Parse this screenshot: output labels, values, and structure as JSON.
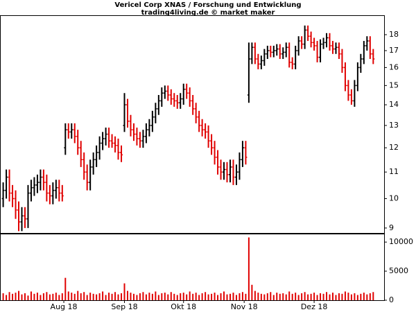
{
  "chart_data": {
    "type": "ohlc",
    "title": "Vericel Corp XNAS / Forschung und Entwicklung",
    "subtitle": "trading4living.de © market maker",
    "log_y": true,
    "up_color": "#000000",
    "down_color": "#e00000",
    "volume_color": "#e00000",
    "xlim": [
      -0.8,
      122.5
    ],
    "xticks": [
      {
        "value": 19.5,
        "label": "Aug 18"
      },
      {
        "value": 39,
        "label": "Sep 18"
      },
      {
        "value": 58,
        "label": "Okt 18"
      },
      {
        "value": 77.5,
        "label": "Nov 18"
      },
      {
        "value": 100,
        "label": "Dez 18"
      }
    ],
    "ylim": [
      8.82,
      19.25
    ],
    "yticks": [
      9,
      10,
      11,
      12,
      13,
      14,
      15,
      16,
      17,
      18
    ],
    "volume_ylim": [
      0,
      11450
    ],
    "volume_yticks": [
      0,
      5000,
      10000
    ],
    "open": [
      10.0,
      10.3,
      10.8,
      10.2,
      10.0,
      9.6,
      9.2,
      9.4,
      9.3,
      10.2,
      10.4,
      10.5,
      10.6,
      10.8,
      10.6,
      10.2,
      10.1,
      10.3,
      10.4,
      10.2,
      12.0,
      12.8,
      12.7,
      12.8,
      12.5,
      12.0,
      11.5,
      11.0,
      10.6,
      11.2,
      11.5,
      11.8,
      12.2,
      12.4,
      12.6,
      12.3,
      12.2,
      12.1,
      11.8,
      13.0,
      14.0,
      13.2,
      12.8,
      12.6,
      12.4,
      12.3,
      12.5,
      12.8,
      13.0,
      13.4,
      13.8,
      14.2,
      14.6,
      14.7,
      14.5,
      14.3,
      14.2,
      14.1,
      14.3,
      14.8,
      14.6,
      14.2,
      13.8,
      13.4,
      13.0,
      12.8,
      12.7,
      12.3,
      12.0,
      11.6,
      11.2,
      11.0,
      11.1,
      10.9,
      11.2,
      10.8,
      11.0,
      11.5,
      12.0,
      14.5,
      16.5,
      17.2,
      16.5,
      16.2,
      16.4,
      16.8,
      17.0,
      16.9,
      17.0,
      17.1,
      16.8,
      16.9,
      17.2,
      16.3,
      16.2,
      17.0,
      17.6,
      17.4,
      18.3,
      17.9,
      17.5,
      17.3,
      16.6,
      17.4,
      17.5,
      17.8,
      17.3,
      17.1,
      17.2,
      16.8,
      16.0,
      15.0,
      14.5,
      14.2,
      15.0,
      16.0,
      16.5,
      17.3,
      17.6,
      16.8
    ],
    "high": [
      10.6,
      11.1,
      11.1,
      10.5,
      10.3,
      9.9,
      9.7,
      9.7,
      10.5,
      10.7,
      10.8,
      10.9,
      11.1,
      11.1,
      10.9,
      10.5,
      10.6,
      10.7,
      10.7,
      10.5,
      13.1,
      13.1,
      13.1,
      13.1,
      12.8,
      12.3,
      11.8,
      11.3,
      11.5,
      11.8,
      12.1,
      12.5,
      12.7,
      12.9,
      12.9,
      12.6,
      12.5,
      12.4,
      12.1,
      14.6,
      14.3,
      13.5,
      13.1,
      12.9,
      12.7,
      12.8,
      13.1,
      13.3,
      13.7,
      14.1,
      14.5,
      14.9,
      15.0,
      15.0,
      14.8,
      14.6,
      14.5,
      14.6,
      15.1,
      15.1,
      14.9,
      14.5,
      14.1,
      13.7,
      13.3,
      13.1,
      13.0,
      12.6,
      12.3,
      11.9,
      11.5,
      11.4,
      11.4,
      11.5,
      11.5,
      11.3,
      11.8,
      12.3,
      12.3,
      17.5,
      17.5,
      17.5,
      16.8,
      16.7,
      17.1,
      17.3,
      17.3,
      17.3,
      17.4,
      17.4,
      17.2,
      17.5,
      17.5,
      16.6,
      17.3,
      17.9,
      17.9,
      18.6,
      18.6,
      18.2,
      17.8,
      17.6,
      17.7,
      17.8,
      18.1,
      18.1,
      17.6,
      17.5,
      17.5,
      17.1,
      16.3,
      15.3,
      14.8,
      15.3,
      16.3,
      16.8,
      17.6,
      17.9,
      17.9,
      17.1
    ],
    "low": [
      9.7,
      10.0,
      9.9,
      9.7,
      9.3,
      8.9,
      8.9,
      9.0,
      9.0,
      9.9,
      10.1,
      10.2,
      10.3,
      10.3,
      9.9,
      9.8,
      9.8,
      10.0,
      9.9,
      9.9,
      11.7,
      12.4,
      12.4,
      12.2,
      11.7,
      11.2,
      10.7,
      10.3,
      10.3,
      10.9,
      11.2,
      11.5,
      11.9,
      12.1,
      12.0,
      12.0,
      11.8,
      11.5,
      11.4,
      12.7,
      12.9,
      12.5,
      12.3,
      12.1,
      12.0,
      12.0,
      12.2,
      12.5,
      12.7,
      13.1,
      13.5,
      13.9,
      14.3,
      14.2,
      14.0,
      13.9,
      13.8,
      13.8,
      14.0,
      14.3,
      13.9,
      13.5,
      13.1,
      12.7,
      12.5,
      12.4,
      12.0,
      11.7,
      11.3,
      10.9,
      10.7,
      10.7,
      10.6,
      10.6,
      10.5,
      10.5,
      10.7,
      11.2,
      11.3,
      14.1,
      16.2,
      16.2,
      15.9,
      15.9,
      16.1,
      16.5,
      16.6,
      16.6,
      16.7,
      16.5,
      16.5,
      16.6,
      16.0,
      15.9,
      15.9,
      16.7,
      17.1,
      17.1,
      17.6,
      17.2,
      17.0,
      16.3,
      16.3,
      17.1,
      17.2,
      17.0,
      16.8,
      16.8,
      16.5,
      15.7,
      14.7,
      14.2,
      14.0,
      13.9,
      14.7,
      15.7,
      16.2,
      17.0,
      16.5,
      16.2
    ],
    "close": [
      10.3,
      10.8,
      10.2,
      10.0,
      9.6,
      9.2,
      9.4,
      9.3,
      10.2,
      10.4,
      10.5,
      10.6,
      10.8,
      10.6,
      10.2,
      10.1,
      10.3,
      10.4,
      10.2,
      10.1,
      12.8,
      12.7,
      12.8,
      12.5,
      12.0,
      11.5,
      11.0,
      10.6,
      11.2,
      11.5,
      11.8,
      12.2,
      12.4,
      12.6,
      12.3,
      12.2,
      12.1,
      11.8,
      11.7,
      14.0,
      13.2,
      12.8,
      12.6,
      12.4,
      12.3,
      12.5,
      12.8,
      13.0,
      13.4,
      13.8,
      14.2,
      14.6,
      14.7,
      14.5,
      14.3,
      14.2,
      14.1,
      14.3,
      14.8,
      14.6,
      14.2,
      13.8,
      13.4,
      13.0,
      12.8,
      12.7,
      12.3,
      12.0,
      11.6,
      11.2,
      11.0,
      11.1,
      10.9,
      11.2,
      10.8,
      11.0,
      11.5,
      12.0,
      11.6,
      16.5,
      17.2,
      16.5,
      16.2,
      16.4,
      16.8,
      17.0,
      16.9,
      17.0,
      17.1,
      16.8,
      16.9,
      17.2,
      16.3,
      16.2,
      17.0,
      17.6,
      17.4,
      18.3,
      17.9,
      17.5,
      17.3,
      16.6,
      17.4,
      17.5,
      17.8,
      17.3,
      17.1,
      17.2,
      16.8,
      16.0,
      15.0,
      14.5,
      14.2,
      15.0,
      16.0,
      16.5,
      17.3,
      17.6,
      16.8,
      16.5
    ],
    "volume": [
      1200,
      900,
      1400,
      1100,
      1300,
      1600,
      1000,
      1200,
      800,
      1500,
      1100,
      1300,
      900,
      1200,
      1400,
      1000,
      1100,
      1300,
      900,
      1200,
      3850,
      1500,
      1300,
      1100,
      1600,
      1200,
      1400,
      900,
      1300,
      1100,
      1000,
      1200,
      1500,
      900,
      1300,
      1100,
      1400,
      1000,
      1200,
      2900,
      1600,
      1300,
      1100,
      900,
      1200,
      1400,
      1000,
      1300,
      1100,
      1500,
      900,
      1200,
      1300,
      1000,
      1400,
      1100,
      900,
      1200,
      1300,
      1000,
      1500,
      1100,
      1300,
      900,
      1200,
      1400,
      1000,
      1100,
      1300,
      900,
      1200,
      1500,
      1000,
      1100,
      1300,
      900,
      1200,
      1400,
      1100,
      10800,
      2650,
      1600,
      1300,
      1100,
      1000,
      1200,
      1400,
      900,
      1300,
      1100,
      1200,
      1000,
      1500,
      1100,
      1300,
      900,
      1200,
      1400,
      1000,
      1100,
      1300,
      900,
      1200,
      1100,
      1400,
      1000,
      1300,
      900,
      1200,
      1100,
      1500,
      1300,
      1000,
      1200,
      900,
      1100,
      1300,
      1000,
      1200,
      1400
    ]
  }
}
